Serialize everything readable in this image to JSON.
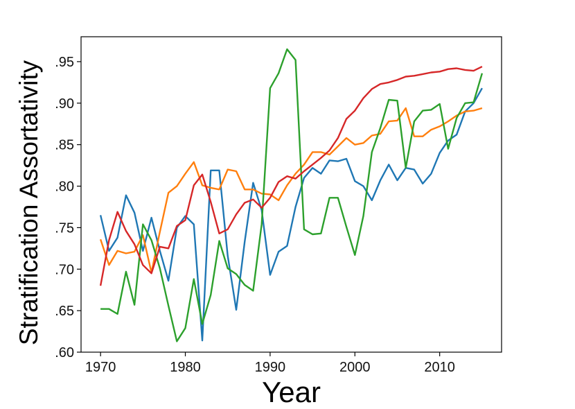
{
  "chart_data": {
    "type": "line",
    "title": "",
    "xlabel": "Year",
    "ylabel": "Stratification Assortativity",
    "xlim": [
      1967.7,
      1969.7
    ],
    "ylim": [
      0.6,
      0.98
    ],
    "x_ticks": [
      1970,
      1980,
      1990,
      2000,
      2010
    ],
    "x_tick_labels": [
      "1970",
      "1980",
      "1990",
      "2000",
      "2010"
    ],
    "y_ticks": [
      0.6,
      0.65,
      0.7,
      0.75,
      0.8,
      0.85,
      0.9,
      0.95
    ],
    "y_tick_labels": [
      ".60",
      ".65",
      ".70",
      ".75",
      ".80",
      ".85",
      ".90",
      ".95"
    ],
    "grid": false,
    "legend": "none",
    "x": [
      1970,
      1971,
      1972,
      1973,
      1974,
      1975,
      1976,
      1977,
      1978,
      1979,
      1980,
      1981,
      1982,
      1983,
      1984,
      1985,
      1986,
      1987,
      1988,
      1989,
      1990,
      1991,
      1992,
      1993,
      1994,
      1995,
      1996,
      1997,
      1998,
      1999,
      2000,
      2001,
      2002,
      2003,
      2004,
      2005,
      2006,
      2007,
      2008,
      2009,
      2010,
      2011,
      2012,
      2013,
      2014,
      2015
    ],
    "series": [
      {
        "color": "#1f77b4",
        "values": [
          0.765,
          0.722,
          0.738,
          0.789,
          0.768,
          0.722,
          0.762,
          0.722,
          0.686,
          0.75,
          0.764,
          0.754,
          0.614,
          0.819,
          0.819,
          0.716,
          0.651,
          0.733,
          0.804,
          0.771,
          0.693,
          0.721,
          0.728,
          0.775,
          0.81,
          0.822,
          0.815,
          0.831,
          0.83,
          0.833,
          0.806,
          0.8,
          0.783,
          0.807,
          0.826,
          0.807,
          0.822,
          0.82,
          0.803,
          0.815,
          0.84,
          0.855,
          0.862,
          0.89,
          0.9,
          0.918
        ]
      },
      {
        "color": "#ff7f0e",
        "values": [
          0.736,
          0.705,
          0.722,
          0.719,
          0.721,
          0.741,
          0.696,
          0.745,
          0.792,
          0.8,
          0.815,
          0.829,
          0.801,
          0.798,
          0.796,
          0.82,
          0.818,
          0.796,
          0.796,
          0.791,
          0.79,
          0.783,
          0.801,
          0.815,
          0.826,
          0.841,
          0.841,
          0.838,
          0.848,
          0.858,
          0.85,
          0.852,
          0.861,
          0.863,
          0.878,
          0.879,
          0.894,
          0.86,
          0.86,
          0.868,
          0.872,
          0.878,
          0.885,
          0.89,
          0.891,
          0.894
        ]
      },
      {
        "color": "#2ca02c",
        "values": [
          0.652,
          0.652,
          0.646,
          0.697,
          0.657,
          0.754,
          0.735,
          0.701,
          0.656,
          0.613,
          0.629,
          0.688,
          0.634,
          0.669,
          0.734,
          0.701,
          0.694,
          0.681,
          0.674,
          0.754,
          0.918,
          0.936,
          0.965,
          0.952,
          0.748,
          0.742,
          0.743,
          0.786,
          0.786,
          0.751,
          0.717,
          0.764,
          0.841,
          0.87,
          0.904,
          0.903,
          0.822,
          0.878,
          0.891,
          0.892,
          0.899,
          0.845,
          0.882,
          0.9,
          0.901,
          0.936
        ]
      },
      {
        "color": "#d62728",
        "values": [
          0.68,
          0.735,
          0.769,
          0.746,
          0.73,
          0.705,
          0.695,
          0.727,
          0.725,
          0.752,
          0.759,
          0.801,
          0.814,
          0.781,
          0.743,
          0.748,
          0.766,
          0.78,
          0.784,
          0.774,
          0.786,
          0.805,
          0.812,
          0.809,
          0.818,
          0.826,
          0.834,
          0.843,
          0.858,
          0.881,
          0.891,
          0.906,
          0.917,
          0.923,
          0.925,
          0.928,
          0.932,
          0.933,
          0.935,
          0.937,
          0.938,
          0.941,
          0.942,
          0.94,
          0.939,
          0.944
        ]
      }
    ]
  }
}
